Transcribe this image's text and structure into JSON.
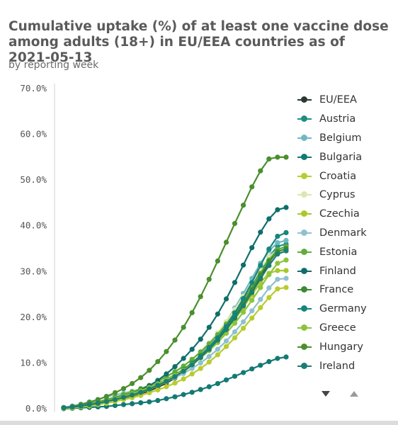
{
  "chart_data": {
    "type": "line",
    "title": "Cumulative uptake (%) of at least one vaccine dose among adults (18+) in EU/EEA countries as of 2021-05-13",
    "subtitle": "by reporting week",
    "ylim": [
      0,
      70
    ],
    "y_ticks": [
      "0.0%",
      "10.0%",
      "20.0%",
      "30.0%",
      "40.0%",
      "50.0%",
      "60.0%",
      "70.0%"
    ],
    "y_tick_values": [
      0,
      10,
      20,
      30,
      40,
      50,
      60,
      70
    ],
    "grid": false,
    "legend_position": "right",
    "series": [
      {
        "name": "EU/EEA",
        "color": "#2b3a2e",
        "values": [
          0.2,
          0.3,
          0.5,
          0.8,
          1.1,
          1.5,
          1.9,
          2.3,
          2.8,
          3.3,
          3.9,
          4.7,
          5.6,
          6.7,
          8.0,
          9.6,
          11.2,
          12.9,
          15.0,
          17.3,
          19.8,
          22.5,
          25.6,
          28.9,
          32.0,
          34.5,
          35.5
        ]
      },
      {
        "name": "Austria",
        "color": "#1c8f82",
        "values": [
          0.2,
          0.4,
          0.6,
          0.9,
          1.3,
          1.7,
          2.2,
          2.7,
          3.3,
          3.9,
          4.6,
          5.4,
          6.3,
          7.3,
          8.5,
          10.0,
          11.6,
          13.5,
          15.6,
          18.0,
          20.6,
          23.5,
          26.7,
          30.0,
          33.2,
          35.5,
          36.0
        ]
      },
      {
        "name": "Belgium",
        "color": "#6fb8c3",
        "values": [
          0.1,
          0.3,
          0.5,
          0.8,
          1.2,
          1.6,
          2.0,
          2.5,
          3.0,
          3.6,
          4.3,
          5.1,
          6.0,
          7.1,
          8.4,
          10.0,
          11.8,
          13.9,
          16.3,
          19.0,
          22.0,
          25.2,
          28.5,
          31.8,
          34.5,
          36.3,
          36.8
        ]
      },
      {
        "name": "Bulgaria",
        "color": "#127a73",
        "values": [
          0.0,
          0.1,
          0.2,
          0.3,
          0.4,
          0.5,
          0.7,
          0.9,
          1.1,
          1.3,
          1.5,
          1.8,
          2.2,
          2.6,
          3.1,
          3.6,
          4.2,
          4.8,
          5.5,
          6.3,
          7.1,
          7.9,
          8.7,
          9.5,
          10.3,
          11.0,
          11.3
        ]
      },
      {
        "name": "Croatia",
        "color": "#b8cc2e",
        "values": [
          0.1,
          0.2,
          0.4,
          0.6,
          0.9,
          1.2,
          1.6,
          2.0,
          2.4,
          2.9,
          3.5,
          4.1,
          4.8,
          5.6,
          6.5,
          7.6,
          8.8,
          10.2,
          11.8,
          13.6,
          15.5,
          17.6,
          19.8,
          22.1,
          24.3,
          26.2,
          26.5
        ]
      },
      {
        "name": "Cyprus",
        "color": "#dde6b0",
        "values": [
          0.2,
          0.4,
          0.6,
          0.9,
          1.3,
          1.8,
          2.3,
          2.9,
          3.5,
          4.2,
          5.0,
          5.9,
          6.9,
          8.0,
          9.3,
          10.8,
          12.5,
          14.4,
          16.6,
          19.0,
          21.7,
          24.6,
          27.6,
          30.6,
          33.2,
          34.8,
          35.0
        ]
      },
      {
        "name": "Czechia",
        "color": "#a9c92a",
        "values": [
          0.1,
          0.3,
          0.5,
          0.8,
          1.1,
          1.5,
          1.9,
          2.4,
          2.9,
          3.5,
          4.2,
          5.0,
          5.9,
          6.9,
          8.1,
          9.5,
          11.1,
          12.9,
          14.9,
          17.1,
          19.5,
          22.1,
          24.9,
          27.6,
          29.6,
          30.2,
          30.2
        ]
      },
      {
        "name": "Denmark",
        "color": "#8fc1cf",
        "values": [
          0.3,
          0.6,
          1.0,
          1.5,
          2.0,
          2.6,
          3.0,
          3.4,
          3.8,
          4.2,
          4.7,
          5.3,
          6.0,
          6.8,
          7.7,
          8.8,
          10.0,
          11.4,
          13.0,
          14.8,
          16.8,
          19.0,
          21.4,
          23.9,
          26.4,
          28.3,
          28.5
        ]
      },
      {
        "name": "Estonia",
        "color": "#5fae3c",
        "values": [
          0.2,
          0.4,
          0.7,
          1.1,
          1.5,
          2.0,
          2.5,
          3.1,
          3.7,
          4.4,
          5.1,
          6.0,
          7.0,
          8.1,
          9.3,
          10.8,
          12.4,
          14.2,
          16.2,
          18.5,
          21.0,
          23.7,
          26.6,
          29.6,
          32.5,
          34.8,
          35.5
        ]
      },
      {
        "name": "Finland",
        "color": "#0f6e6b",
        "values": [
          0.2,
          0.4,
          0.6,
          0.9,
          1.2,
          1.6,
          2.1,
          2.7,
          3.3,
          4.1,
          5.0,
          6.2,
          7.6,
          9.2,
          11.0,
          13.0,
          15.2,
          17.8,
          20.7,
          24.0,
          27.6,
          31.4,
          35.2,
          38.6,
          41.5,
          43.5,
          44.0
        ]
      },
      {
        "name": "France",
        "color": "#3d8a34",
        "values": [
          0.2,
          0.4,
          0.7,
          1.0,
          1.4,
          1.8,
          2.3,
          2.8,
          3.4,
          4.0,
          4.7,
          5.5,
          6.4,
          7.4,
          8.6,
          10.0,
          11.6,
          13.4,
          15.4,
          17.7,
          20.2,
          23.0,
          26.0,
          29.2,
          32.2,
          34.3,
          35.0
        ]
      },
      {
        "name": "Germany",
        "color": "#16857a",
        "values": [
          0.2,
          0.4,
          0.6,
          0.9,
          1.3,
          1.7,
          2.2,
          2.7,
          3.2,
          3.8,
          4.5,
          5.3,
          6.2,
          7.2,
          8.4,
          9.8,
          11.4,
          13.3,
          15.5,
          18.0,
          20.9,
          24.1,
          27.6,
          31.3,
          34.9,
          37.7,
          38.5
        ]
      },
      {
        "name": "Greece",
        "color": "#8cc43a",
        "values": [
          0.2,
          0.4,
          0.6,
          0.9,
          1.3,
          1.7,
          2.2,
          2.7,
          3.3,
          3.9,
          4.6,
          5.4,
          6.3,
          7.3,
          8.4,
          9.7,
          11.1,
          12.7,
          14.5,
          16.5,
          18.7,
          21.1,
          23.7,
          26.5,
          29.3,
          31.8,
          32.5
        ]
      },
      {
        "name": "Hungary",
        "color": "#4a8f2c",
        "values": [
          0.2,
          0.5,
          0.9,
          1.4,
          2.0,
          2.7,
          3.5,
          4.4,
          5.5,
          6.8,
          8.4,
          10.3,
          12.5,
          15.0,
          17.8,
          21.0,
          24.5,
          28.3,
          32.3,
          36.4,
          40.5,
          44.5,
          48.5,
          52.0,
          54.6,
          55.0,
          55.0
        ]
      },
      {
        "name": "Ireland",
        "color": "#1a7e72",
        "values": [
          0.2,
          0.4,
          0.6,
          0.9,
          1.2,
          1.6,
          2.0,
          2.5,
          3.0,
          3.6,
          4.3,
          5.1,
          6.0,
          7.0,
          8.2,
          9.6,
          11.2,
          13.0,
          15.0,
          17.3,
          19.8,
          22.5,
          25.4,
          28.4,
          31.3,
          33.8,
          34.5
        ]
      }
    ]
  },
  "pager": {
    "down_icon": "triangle-down",
    "up_icon": "triangle-up"
  }
}
